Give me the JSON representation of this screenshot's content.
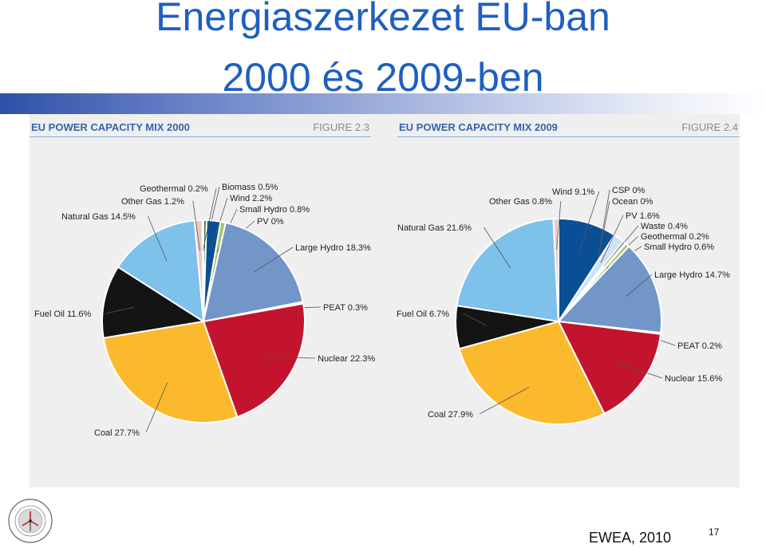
{
  "slide": {
    "title_line1": "Energiaszerkezet EU-ban",
    "title_line2": "2000 és 2009-ben",
    "source": "EWEA, 2010",
    "page_number": "17"
  },
  "colors": {
    "title": "#1f5fc0",
    "header": "#3564ae"
  },
  "chart_data": [
    {
      "type": "pie",
      "title": "EU POWER CAPACITY MIX 2000",
      "figure": "FIGURE 2.3",
      "start_angle_deg": 0,
      "slices": [
        {
          "name": "Biomass",
          "value": 0.5,
          "label": "Biomass 0.5%",
          "color": "#2f7d3a"
        },
        {
          "name": "Wind",
          "value": 2.2,
          "label": "Wind 2.2%",
          "color": "#0a4e94"
        },
        {
          "name": "Small Hydro",
          "value": 0.8,
          "label": "Small Hydro 0.8%",
          "color": "#a8c36a"
        },
        {
          "name": "PV",
          "value": 0.0,
          "label": "PV 0%",
          "color": "#f4a81d"
        },
        {
          "name": "Large Hydro",
          "value": 18.3,
          "label": "Large Hydro 18.3%",
          "color": "#7396c8"
        },
        {
          "name": "PEAT",
          "value": 0.3,
          "label": "PEAT 0.3%",
          "color": "#d8d8d8"
        },
        {
          "name": "Nuclear",
          "value": 22.3,
          "label": "Nuclear 22.3%",
          "color": "#c2142e"
        },
        {
          "name": "Coal",
          "value": 27.7,
          "label": "Coal 27.7%",
          "color": "#fbb92e"
        },
        {
          "name": "Fuel Oil",
          "value": 11.6,
          "label": "Fuel Oil 11.6%",
          "color": "#141414"
        },
        {
          "name": "Natural Gas",
          "value": 14.5,
          "label": "Natural Gas 14.5%",
          "color": "#7ec1ea"
        },
        {
          "name": "Other Gas",
          "value": 1.2,
          "label": "Other Gas 1.2%",
          "color": "#f2c4c4"
        },
        {
          "name": "Geothermal",
          "value": 0.2,
          "label": "Geothermal 0.2%",
          "color": "#9a9a9a"
        }
      ]
    },
    {
      "type": "pie",
      "title": "EU POWER CAPACITY MIX 2009",
      "figure": "FIGURE 2.4",
      "start_angle_deg": 0,
      "slices": [
        {
          "name": "Wind",
          "value": 9.1,
          "label": "Wind 9.1%",
          "color": "#0a4e94"
        },
        {
          "name": "CSP",
          "value": 0.0,
          "label": "CSP 0%",
          "color": "#e07b2b"
        },
        {
          "name": "Ocean",
          "value": 0.0,
          "label": "Ocean 0%",
          "color": "#4a9a8a"
        },
        {
          "name": "PV",
          "value": 1.6,
          "label": "PV 1.6%",
          "color": "#cfe3f5"
        },
        {
          "name": "Waste",
          "value": 0.4,
          "label": "Waste 0.4%",
          "color": "#8a6a3a"
        },
        {
          "name": "Geothermal",
          "value": 0.2,
          "label": "Geothermal 0.2%",
          "color": "#9a9a9a"
        },
        {
          "name": "Small Hydro",
          "value": 0.6,
          "label": "Small Hydro 0.6%",
          "color": "#a8c36a"
        },
        {
          "name": "Large Hydro",
          "value": 14.7,
          "label": "Large Hydro 14.7%",
          "color": "#7396c8"
        },
        {
          "name": "PEAT",
          "value": 0.2,
          "label": "PEAT 0.2%",
          "color": "#d8d8d8"
        },
        {
          "name": "Nuclear",
          "value": 15.6,
          "label": "Nuclear 15.6%",
          "color": "#c2142e"
        },
        {
          "name": "Coal",
          "value": 27.9,
          "label": "Coal 27.9%",
          "color": "#fbb92e"
        },
        {
          "name": "Fuel Oil",
          "value": 6.7,
          "label": "Fuel Oil 6.7%",
          "color": "#141414"
        },
        {
          "name": "Natural Gas",
          "value": 21.6,
          "label": "Natural Gas 21.6%",
          "color": "#7ec1ea"
        },
        {
          "name": "Other Gas",
          "value": 0.8,
          "label": "Other Gas 0.8%",
          "color": "#f2c4c4"
        }
      ]
    }
  ]
}
